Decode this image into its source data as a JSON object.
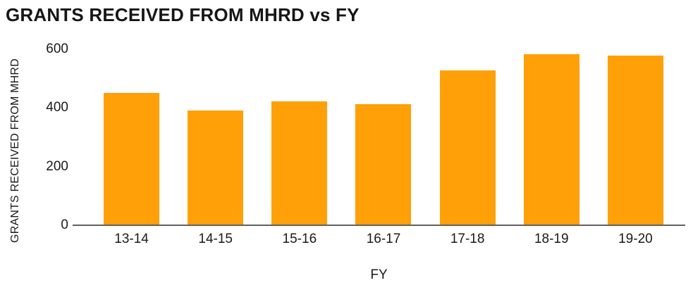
{
  "chart": {
    "title": "GRANTS RECEIVED FROM MHRD vs FY",
    "x_axis_title": "FY",
    "y_axis_title": "GRANTS RECEIVED FROM MHRD"
  },
  "chart_data": {
    "type": "bar",
    "title": "GRANTS RECEIVED FROM MHRD vs FY",
    "categories": [
      "13-14",
      "14-15",
      "15-16",
      "16-17",
      "17-18",
      "18-19",
      "19-20"
    ],
    "values": [
      450,
      390,
      420,
      410,
      525,
      580,
      575
    ],
    "xlabel": "FY",
    "ylabel": "GRANTS RECEIVED FROM MHRD",
    "ylim": [
      0,
      600
    ],
    "yticks": [
      0,
      200,
      400,
      600
    ],
    "grid": false,
    "legend": false,
    "bar_color": "#FFA008",
    "axis_line_color": "#606060",
    "text_color": "#1a1a1a"
  }
}
